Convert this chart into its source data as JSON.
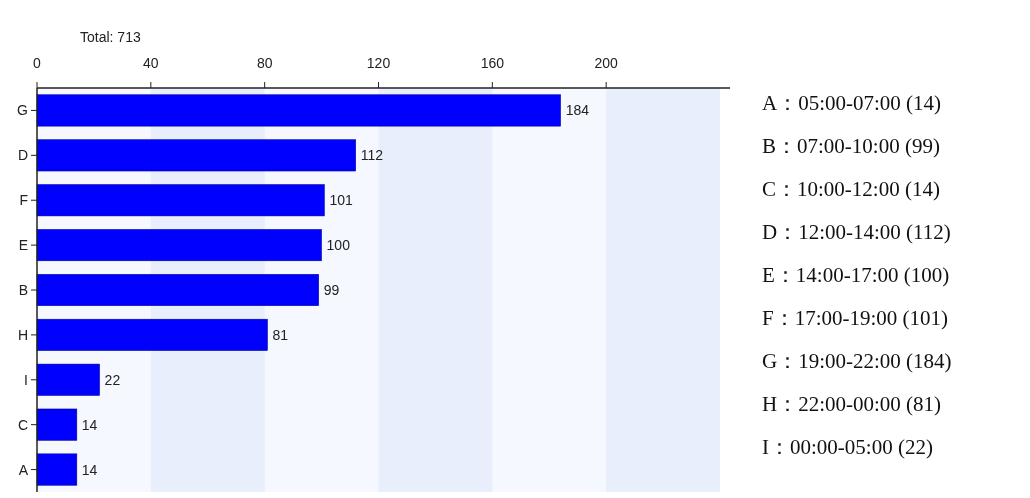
{
  "chart_data": {
    "type": "bar",
    "orientation": "horizontal",
    "categories": [
      "G",
      "D",
      "F",
      "E",
      "B",
      "H",
      "I",
      "C",
      "A"
    ],
    "values": [
      184,
      112,
      101,
      100,
      99,
      81,
      22,
      14,
      14
    ],
    "color": "#0000ff",
    "xlim": [
      0,
      240
    ],
    "xticks": [
      0,
      40,
      80,
      120,
      160,
      200
    ],
    "data_labels": true,
    "annotations": [
      "Total: 713",
      "A：05:00-07:00 (14)",
      "B：07:00-10:00 (99)",
      "C：10:00-12:00 (14)",
      "D：12:00-14:00 (112)",
      "E：14:00-17:00 (100)",
      "F：17:00-19:00 (101)",
      "G：19:00-22:00 (184)",
      "H：22:00-00:00 (81)",
      "I：00:00-05:00 (22)"
    ]
  }
}
